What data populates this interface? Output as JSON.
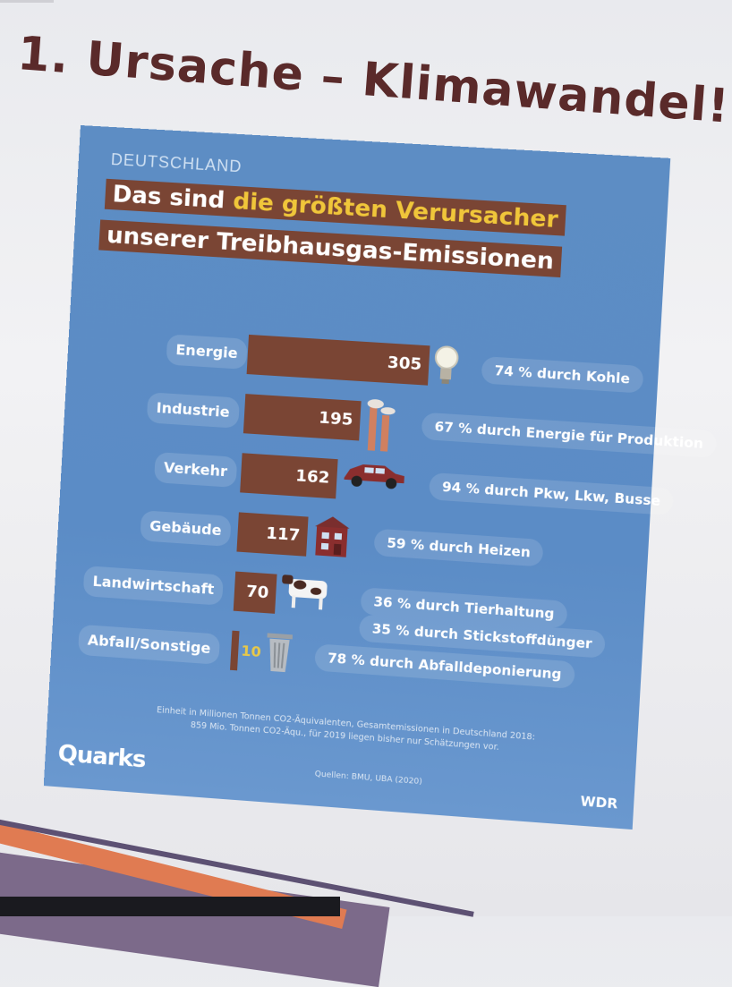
{
  "slide": {
    "title": "1. Ursache – Klimawandel!"
  },
  "infographic": {
    "kicker": "DEUTSCHLAND",
    "headline_line1_a": "Das sind ",
    "headline_line1_b": "die größten Verursacher",
    "headline_line2": "unserer Treibhausgas-Emissionen",
    "footnote_line1": "Einheit in Millionen Tonnen CO2-Äquivalenten, Gesamtemissionen in Deutschland 2018:",
    "footnote_line2": "859 Mio. Tonnen CO2-Äqu., für 2019 liegen bisher nur Schätzungen vor.",
    "source": "Quellen: BMU, UBA (2020)",
    "logo_left": "Quarks",
    "logo_right": "WDR",
    "colors": {
      "background": "#5b8cc6",
      "bar": "#7a4534",
      "highlight": "#f0c63a"
    }
  },
  "chart_data": {
    "type": "bar",
    "orientation": "horizontal",
    "categories": [
      "Energie",
      "Industrie",
      "Verkehr",
      "Gebäude",
      "Landwirtschaft",
      "Abfall/Sonstige"
    ],
    "values": [
      305,
      195,
      162,
      117,
      70,
      10
    ],
    "value_labels": [
      "305",
      "195",
      "162",
      "117",
      "70",
      "10"
    ],
    "icons": [
      "light-bulb-icon",
      "factory-icon",
      "car-icon",
      "building-icon",
      "cow-icon",
      "trash-can-icon"
    ],
    "notes": [
      [
        "74 % durch Kohle"
      ],
      [
        "67 % durch Energie für Produktion"
      ],
      [
        "94 % durch Pkw, Lkw, Busse"
      ],
      [
        "59 % durch Heizen"
      ],
      [
        "36 % durch Tierhaltung",
        "35 % durch Stickstoffdünger"
      ],
      [
        "78 % durch Abfalldeponierung"
      ]
    ]
  }
}
